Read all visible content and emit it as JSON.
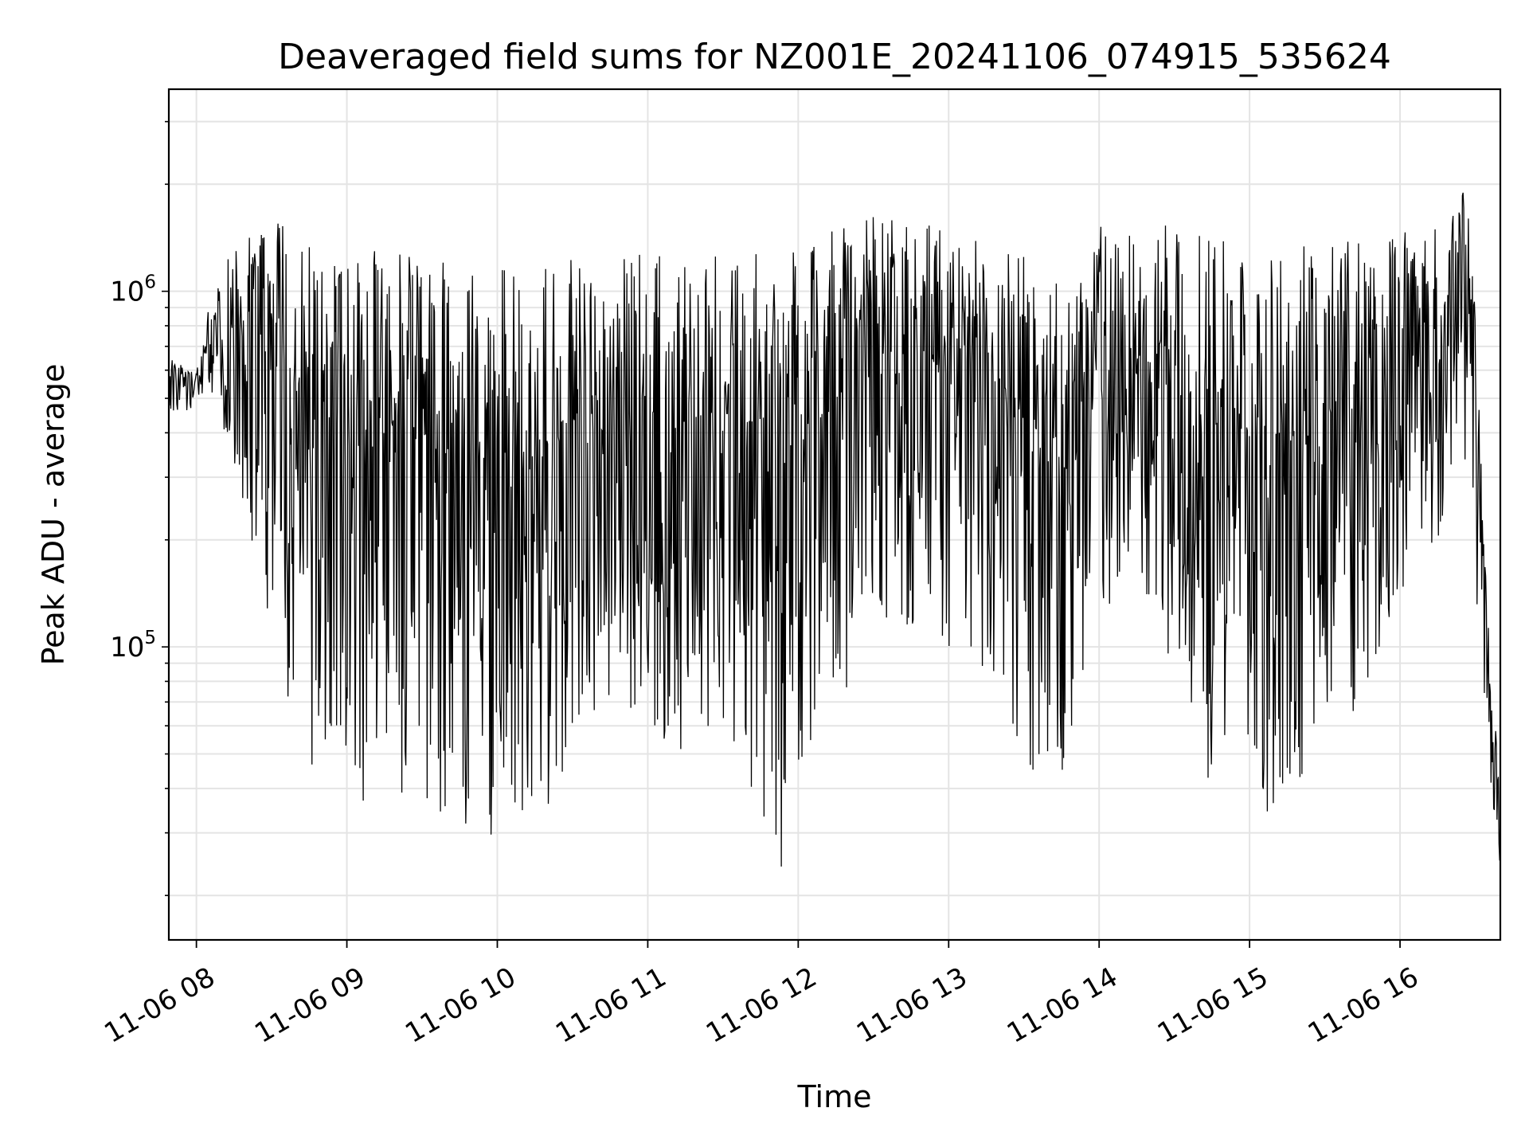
{
  "chart_data": {
    "type": "line",
    "title": "Deaveraged field sums for NZ001E_20241106_074915_535624",
    "xlabel": "Time",
    "ylabel": "Peak ADU - average",
    "yscale": "log",
    "xlim": [
      "11-06 07:49",
      "11-06 16:40"
    ],
    "ylim": [
      15000,
      3700000
    ],
    "grid": true,
    "legend": "none",
    "line_color": "#000000",
    "x_ticks": [
      {
        "label": "11-06 08",
        "hour": 8
      },
      {
        "label": "11-06 09",
        "hour": 9
      },
      {
        "label": "11-06 10",
        "hour": 10
      },
      {
        "label": "11-06 11",
        "hour": 11
      },
      {
        "label": "11-06 12",
        "hour": 12
      },
      {
        "label": "11-06 13",
        "hour": 13
      },
      {
        "label": "11-06 14",
        "hour": 14
      },
      {
        "label": "11-06 15",
        "hour": 15
      },
      {
        "label": "11-06 16",
        "hour": 16
      }
    ],
    "y_ticks": [
      {
        "base": "10",
        "exp": "5",
        "value": 100000
      },
      {
        "base": "10",
        "exp": "6",
        "value": 1000000
      }
    ],
    "series": [
      {
        "time": [
          "07:49",
          "08:00",
          "08:05",
          "08:15",
          "08:25",
          "08:35",
          "08:45",
          "09:00",
          "09:15",
          "09:30",
          "09:45",
          "10:00",
          "10:15",
          "10:30",
          "10:45",
          "11:00",
          "11:15",
          "11:30",
          "11:45",
          "11:55",
          "12:00",
          "12:15",
          "12:30",
          "12:45",
          "13:00",
          "13:15",
          "13:30",
          "13:35",
          "13:45",
          "14:00",
          "14:15",
          "14:30",
          "14:45",
          "15:00",
          "15:10",
          "15:20",
          "15:30",
          "15:45",
          "16:00",
          "16:15",
          "16:25",
          "16:30",
          "16:35",
          "16:40"
        ],
        "envelope_high": [
          650000,
          600000,
          900000,
          1400000,
          1500000,
          1700000,
          1400000,
          1350000,
          1300000,
          1300000,
          1250000,
          1200000,
          1150000,
          1300000,
          1300000,
          1300000,
          1250000,
          1300000,
          1300000,
          1300000,
          1450000,
          1500000,
          1650000,
          1550000,
          1600000,
          1450000,
          1350000,
          950000,
          1100000,
          1550000,
          1500000,
          1550000,
          1500000,
          1350000,
          1300000,
          1350000,
          1350000,
          1450000,
          1550000,
          1600000,
          2200000,
          1300000,
          120000,
          40000
        ],
        "envelope_low": [
          420000,
          480000,
          550000,
          300000,
          150000,
          70000,
          45000,
          32000,
          40000,
          35000,
          30000,
          28000,
          32000,
          45000,
          70000,
          55000,
          50000,
          60000,
          35000,
          20000,
          40000,
          50000,
          120000,
          110000,
          100000,
          85000,
          50000,
          35000,
          40000,
          120000,
          150000,
          70000,
          40000,
          38000,
          32000,
          40000,
          50000,
          70000,
          140000,
          200000,
          400000,
          150000,
          50000,
          22000
        ]
      }
    ]
  }
}
